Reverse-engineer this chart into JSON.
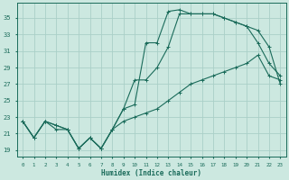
{
  "xlabel": "Humidex (Indice chaleur)",
  "bg_color": "#cce8e0",
  "grid_color": "#aacfc7",
  "line_color": "#1a6b5a",
  "x_ticks": [
    0,
    1,
    2,
    3,
    4,
    5,
    6,
    7,
    8,
    9,
    10,
    11,
    12,
    13,
    14,
    15,
    16,
    17,
    18,
    19,
    20,
    21,
    22,
    23
  ],
  "y_ticks": [
    19,
    21,
    23,
    25,
    27,
    29,
    31,
    33,
    35
  ],
  "ylim": [
    18.2,
    36.8
  ],
  "xlim": [
    -0.5,
    23.5
  ],
  "line1": [
    22.5,
    20.5,
    22.5,
    21.5,
    21.5,
    19.2,
    20.5,
    19.2,
    21.5,
    24.0,
    24.5,
    32.0,
    32.0,
    35.8,
    36.0,
    35.5,
    35.5,
    35.5,
    35.0,
    34.5,
    34.0,
    32.0,
    29.5,
    28.0
  ],
  "line2": [
    22.5,
    20.5,
    22.5,
    22.0,
    21.5,
    19.2,
    20.5,
    19.2,
    21.5,
    24.0,
    27.5,
    27.5,
    29.0,
    31.5,
    35.5,
    35.5,
    35.5,
    35.5,
    35.0,
    34.5,
    34.0,
    33.5,
    31.5,
    27.0
  ],
  "line3": [
    22.5,
    20.5,
    22.5,
    22.0,
    21.5,
    19.2,
    20.5,
    19.2,
    21.5,
    22.5,
    23.0,
    23.5,
    24.0,
    25.0,
    26.0,
    27.0,
    27.5,
    28.0,
    28.5,
    29.0,
    29.5,
    30.5,
    28.0,
    27.5
  ]
}
